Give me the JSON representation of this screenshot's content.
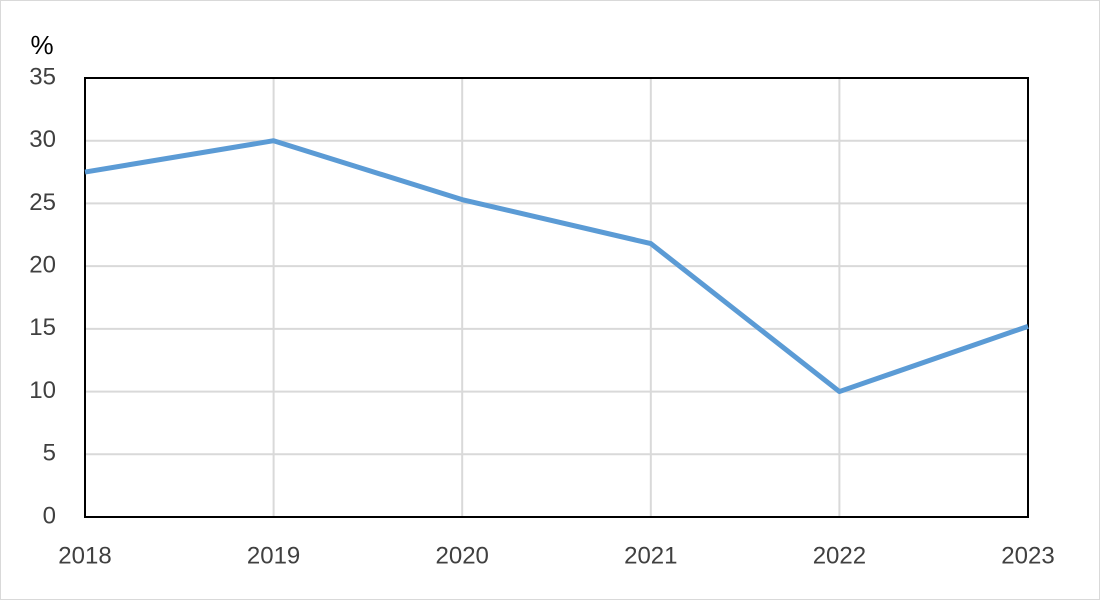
{
  "chart_data": {
    "type": "line",
    "y_label": "%",
    "x": [
      2018,
      2019,
      2020,
      2021,
      2022,
      2023
    ],
    "values": [
      27.5,
      30,
      25.3,
      21.8,
      10,
      15.2
    ],
    "color": "#5b9bd5",
    "xlim": [
      2018,
      2023
    ],
    "xticks": [
      2018,
      2019,
      2020,
      2021,
      2022,
      2023
    ],
    "ylim": [
      0,
      35
    ],
    "yticks": [
      0,
      5,
      10,
      15,
      20,
      25,
      30,
      35
    ],
    "grid": true
  }
}
